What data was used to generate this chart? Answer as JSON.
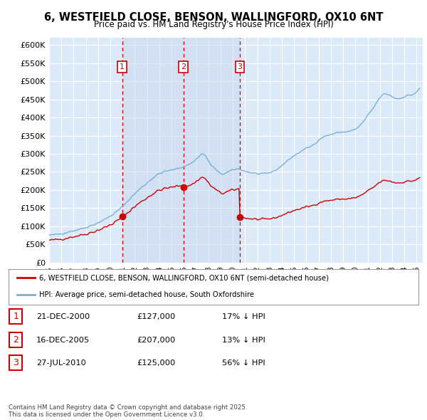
{
  "title1": "6, WESTFIELD CLOSE, BENSON, WALLINGFORD, OX10 6NT",
  "title2": "Price paid vs. HM Land Registry's House Price Index (HPI)",
  "ylim": [
    0,
    620000
  ],
  "yticks": [
    0,
    50000,
    100000,
    150000,
    200000,
    250000,
    300000,
    350000,
    400000,
    450000,
    500000,
    550000,
    600000
  ],
  "ytick_labels": [
    "£0",
    "£50K",
    "£100K",
    "£150K",
    "£200K",
    "£250K",
    "£300K",
    "£350K",
    "£400K",
    "£450K",
    "£500K",
    "£550K",
    "£600K"
  ],
  "xlim_start": 1995.0,
  "xlim_end": 2025.5,
  "plot_bg_color": "#dce9f8",
  "grid_color": "#ffffff",
  "red_line_color": "#cc0000",
  "blue_line_color": "#7ab0d4",
  "shade_color": "#c8d8ee",
  "transaction_dates": [
    2000.97,
    2005.96,
    2010.57
  ],
  "transaction_prices": [
    127000,
    207000,
    125000
  ],
  "transaction_labels": [
    "1",
    "2",
    "3"
  ],
  "legend_red_label": "6, WESTFIELD CLOSE, BENSON, WALLINGFORD, OX10 6NT (semi-detached house)",
  "legend_blue_label": "HPI: Average price, semi-detached house, South Oxfordshire",
  "table_rows": [
    [
      "1",
      "21-DEC-2000",
      "£127,000",
      "17% ↓ HPI"
    ],
    [
      "2",
      "16-DEC-2005",
      "£207,000",
      "13% ↓ HPI"
    ],
    [
      "3",
      "27-JUL-2010",
      "£125,000",
      "56% ↓ HPI"
    ]
  ],
  "footer_text": "Contains HM Land Registry data © Crown copyright and database right 2025.\nThis data is licensed under the Open Government Licence v3.0."
}
